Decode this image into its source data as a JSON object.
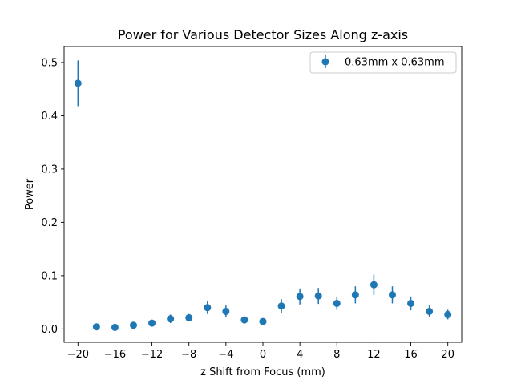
{
  "chart_data": {
    "type": "scatter",
    "title": "Power for Various Detector Sizes Along z-axis",
    "xlabel": "z Shift from Focus (mm)",
    "ylabel": "Power",
    "xlim": [
      -21.5,
      21.5
    ],
    "ylim": [
      -0.025,
      0.53
    ],
    "x_ticks": [
      -20,
      -16,
      -12,
      -8,
      -4,
      0,
      4,
      8,
      12,
      16,
      20
    ],
    "x_tick_labels": [
      "−20",
      "−16",
      "−12",
      "−8",
      "−4",
      "0",
      "4",
      "8",
      "12",
      "16",
      "20"
    ],
    "y_ticks": [
      0.0,
      0.1,
      0.2,
      0.3,
      0.4,
      0.5
    ],
    "y_tick_labels": [
      "0.0",
      "0.1",
      "0.2",
      "0.3",
      "0.4",
      "0.5"
    ],
    "grid": false,
    "legend": {
      "position": "top-right",
      "entries": [
        "0.63mm x 0.63mm"
      ]
    },
    "series": [
      {
        "name": "0.63mm x 0.63mm",
        "color": "#1f77b4",
        "marker": "circle",
        "x": [
          -20,
          -18,
          -16,
          -14,
          -12,
          -10,
          -8,
          -6,
          -4,
          -2,
          0,
          2,
          4,
          6,
          8,
          10,
          12,
          14,
          16,
          18,
          20
        ],
        "y": [
          0.461,
          0.004,
          0.003,
          0.007,
          0.011,
          0.019,
          0.021,
          0.04,
          0.033,
          0.017,
          0.014,
          0.043,
          0.061,
          0.062,
          0.048,
          0.064,
          0.083,
          0.064,
          0.048,
          0.033,
          0.027
        ],
        "err": [
          0.043,
          0.002,
          0.002,
          0.003,
          0.004,
          0.008,
          0.007,
          0.012,
          0.011,
          0.006,
          0.005,
          0.013,
          0.015,
          0.015,
          0.012,
          0.016,
          0.019,
          0.016,
          0.013,
          0.011,
          0.009
        ]
      }
    ]
  }
}
